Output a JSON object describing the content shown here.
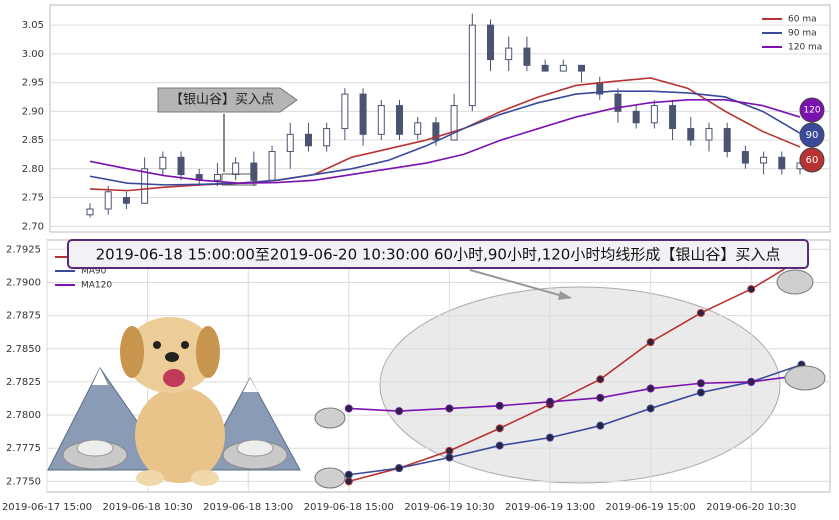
{
  "chart_data": [
    {
      "type": "candlestick",
      "open": [
        2.72,
        2.73,
        2.75,
        2.74,
        2.8,
        2.82,
        2.79,
        2.78,
        2.79,
        2.81,
        2.78,
        2.83,
        2.86,
        2.84,
        2.87,
        2.93,
        2.86,
        2.91,
        2.86,
        2.88,
        2.85,
        2.91,
        3.05,
        2.99,
        3.01,
        2.98,
        2.97,
        2.98,
        2.95,
        2.93,
        2.9,
        2.88,
        2.91,
        2.87,
        2.85,
        2.87,
        2.83,
        2.81,
        2.82,
        2.8
      ],
      "close": [
        2.73,
        2.76,
        2.74,
        2.8,
        2.82,
        2.79,
        2.78,
        2.79,
        2.81,
        2.78,
        2.83,
        2.86,
        2.84,
        2.87,
        2.93,
        2.86,
        2.91,
        2.86,
        2.88,
        2.85,
        2.91,
        3.05,
        2.99,
        3.01,
        2.98,
        2.97,
        2.98,
        2.97,
        2.93,
        2.9,
        2.88,
        2.91,
        2.87,
        2.85,
        2.87,
        2.83,
        2.81,
        2.82,
        2.8,
        2.81
      ],
      "high": [
        2.74,
        2.77,
        2.76,
        2.82,
        2.83,
        2.83,
        2.8,
        2.81,
        2.82,
        2.83,
        2.84,
        2.88,
        2.88,
        2.88,
        2.94,
        2.94,
        2.92,
        2.92,
        2.89,
        2.89,
        2.93,
        3.07,
        3.06,
        3.03,
        3.03,
        2.99,
        2.99,
        2.98,
        2.96,
        2.94,
        2.91,
        2.92,
        2.92,
        2.89,
        2.88,
        2.88,
        2.84,
        2.83,
        2.83,
        2.82
      ],
      "low": [
        2.715,
        2.72,
        2.73,
        2.74,
        2.79,
        2.78,
        2.77,
        2.77,
        2.78,
        2.77,
        2.78,
        2.8,
        2.83,
        2.83,
        2.85,
        2.84,
        2.85,
        2.85,
        2.85,
        2.84,
        2.85,
        2.9,
        2.97,
        2.97,
        2.97,
        2.97,
        2.97,
        2.95,
        2.92,
        2.88,
        2.87,
        2.87,
        2.85,
        2.84,
        2.83,
        2.82,
        2.8,
        2.79,
        2.79,
        2.79
      ],
      "candle_color": "#4a5472",
      "series": [
        {
          "name": "60 ma",
          "color": "#b83232",
          "values": [
            2.765,
            2.762,
            2.768,
            2.772,
            2.775,
            2.78,
            2.79,
            2.82,
            2.835,
            2.85,
            2.87,
            2.9,
            2.925,
            2.945,
            2.952,
            2.958,
            2.94,
            2.9,
            2.865,
            2.838
          ]
        },
        {
          "name": "90 ma",
          "color": "#3a4a9a",
          "values": [
            2.787,
            2.775,
            2.772,
            2.773,
            2.775,
            2.78,
            2.79,
            2.8,
            2.815,
            2.84,
            2.87,
            2.895,
            2.915,
            2.93,
            2.935,
            2.935,
            2.932,
            2.925,
            2.9,
            2.862
          ]
        },
        {
          "name": "120 ma",
          "color": "#7b12b0",
          "values": [
            2.813,
            2.8,
            2.788,
            2.78,
            2.775,
            2.776,
            2.78,
            2.79,
            2.8,
            2.81,
            2.825,
            2.85,
            2.87,
            2.89,
            2.905,
            2.915,
            2.92,
            2.92,
            2.91,
            2.89
          ]
        }
      ],
      "ylim": [
        2.69,
        3.085
      ],
      "yticks": [
        {
          "value": 2.7,
          "label": "2.70"
        },
        2.75,
        {
          "value": 2.8,
          "label": "2.80"
        },
        2.85,
        {
          "value": 2.9,
          "label": "2.90"
        },
        2.95,
        {
          "value": 3.0,
          "label": "3.00"
        },
        3.05
      ],
      "grid": true,
      "legend": "upper right",
      "annotation": "【银山谷】买入点",
      "end_labels": [
        "120",
        "90",
        "60"
      ]
    },
    {
      "type": "line",
      "title": "2019-06-18 15:00:00至2019-06-20 10:30:00 60小时,90小时,120小时均线形成【银山谷】买入点",
      "categories": [
        "2019-06-17 15:00",
        null,
        "2019-06-18 10:30",
        null,
        "2019-06-18 13:00",
        null,
        "2019-06-18 15:00",
        null,
        "2019-06-19 10:30",
        null,
        "2019-06-19 13:00",
        null,
        "2019-06-19 15:00",
        null,
        "2019-06-20 10:30",
        null
      ],
      "series": [
        {
          "name": "MA60",
          "color": "#b83232",
          "values": [
            null,
            null,
            null,
            null,
            null,
            null,
            2.775,
            2.776,
            2.7773,
            2.779,
            2.7808,
            2.7827,
            2.7855,
            2.7877,
            2.7895,
            2.7918
          ]
        },
        {
          "name": "MA90",
          "color": "#3a4a9a",
          "values": [
            null,
            null,
            null,
            null,
            null,
            null,
            2.7755,
            2.776,
            2.7768,
            2.7777,
            2.7783,
            2.7792,
            2.7805,
            2.7817,
            2.7825,
            2.7838
          ]
        },
        {
          "name": "MA120",
          "color": "#7b12b0",
          "values": [
            null,
            null,
            null,
            null,
            null,
            null,
            2.7805,
            2.7803,
            2.7805,
            2.7807,
            2.781,
            2.7813,
            2.782,
            2.7824,
            2.7825,
            2.783
          ]
        }
      ],
      "ylim": [
        2.7742,
        2.7932
      ],
      "yticks": [
        {
          "value": 2.775,
          "label": "2.7750"
        },
        2.7775,
        {
          "value": 2.78,
          "label": "2.7800"
        },
        2.7825,
        {
          "value": 2.785,
          "label": "2.7850"
        },
        2.7875,
        {
          "value": 2.79,
          "label": "2.7900"
        },
        2.7925
      ],
      "grid": true,
      "legend": "upper left"
    }
  ]
}
